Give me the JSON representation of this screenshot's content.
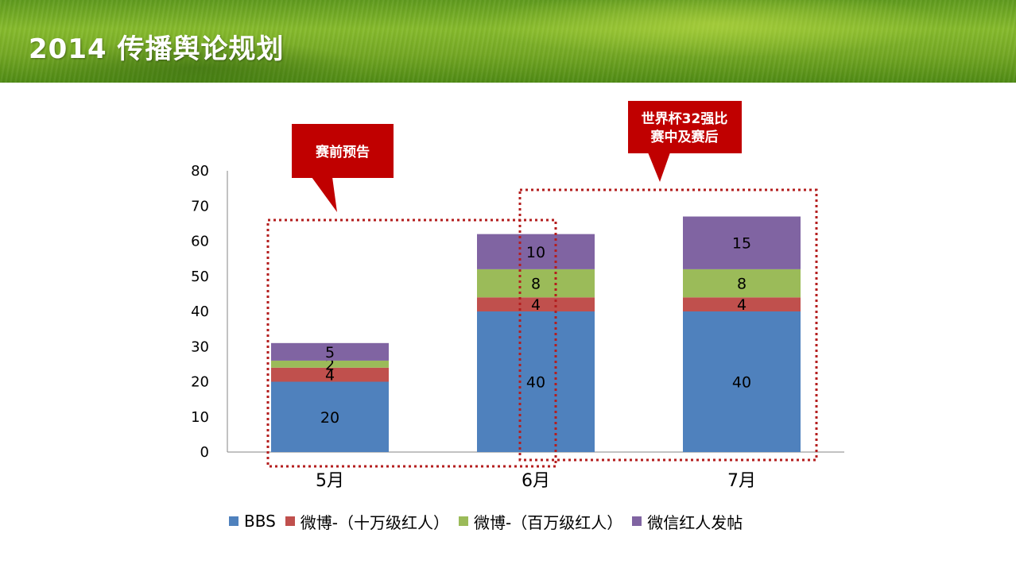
{
  "header": {
    "title": "2014 传播舆论规划"
  },
  "callouts": [
    {
      "text_lines": [
        "赛前预告"
      ]
    },
    {
      "text_lines": [
        "世界杯32强比",
        "赛中及赛后"
      ]
    }
  ],
  "colors": {
    "bbs": "#4f81bd",
    "weibo_100k": "#c0504d",
    "weibo_1m": "#9bbb59",
    "wechat": "#8064a2",
    "callout": "#c00000",
    "dotted_box": "#b41e1e"
  },
  "chart_data": {
    "type": "bar",
    "stacked": true,
    "categories": [
      "5月",
      "6月",
      "7月"
    ],
    "series": [
      {
        "name": "BBS",
        "values": [
          20,
          40,
          40
        ],
        "color": "#4f81bd"
      },
      {
        "name": "微博-（十万级红人）",
        "values": [
          4,
          4,
          4
        ],
        "color": "#c0504d"
      },
      {
        "name": "微博-（百万级红人）",
        "values": [
          2,
          8,
          8
        ],
        "color": "#9bbb59"
      },
      {
        "name": "微信红人发帖",
        "values": [
          5,
          10,
          15
        ],
        "color": "#8064a2"
      }
    ],
    "ylim": [
      0,
      80
    ],
    "yticks": [
      0,
      10,
      20,
      30,
      40,
      50,
      60,
      70,
      80
    ],
    "grid": false,
    "legend": "bottom"
  }
}
